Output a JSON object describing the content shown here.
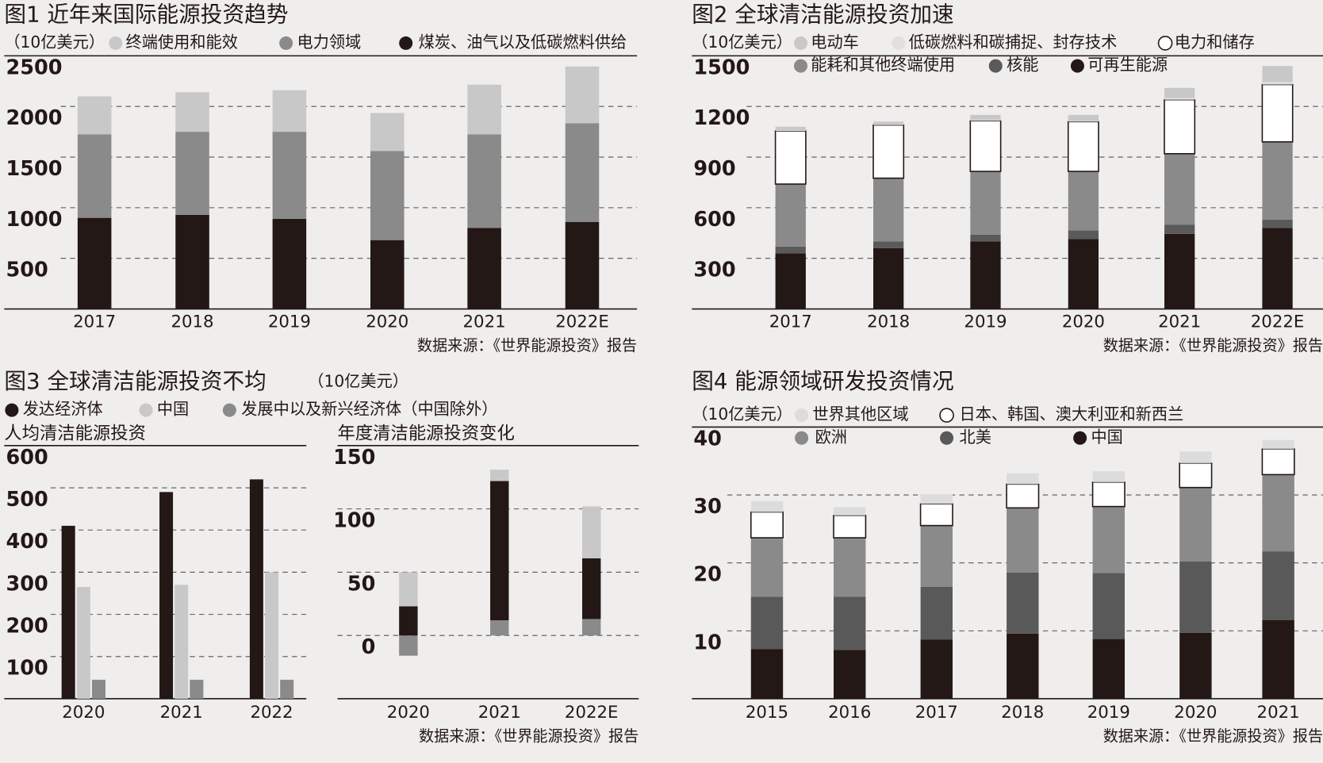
{
  "chart_data": [
    {
      "type": "bar",
      "stacked": true,
      "title": "图1  近年来国际能源投资趋势",
      "unit": "（10亿美元）",
      "categories": [
        "2017",
        "2018",
        "2019",
        "2020",
        "2021",
        "2022E"
      ],
      "series": [
        {
          "name": "终端使用和能效",
          "color": "#c8c8c8",
          "values": [
            375,
            390,
            410,
            375,
            490,
            560
          ]
        },
        {
          "name": "电力领域",
          "color": "#8a8a8a",
          "values": [
            825,
            820,
            860,
            880,
            925,
            975
          ]
        },
        {
          "name": "煤炭、油气以及低碳燃料供给",
          "color": "#231815",
          "values": [
            900,
            930,
            890,
            680,
            800,
            860
          ]
        }
      ],
      "ylim": [
        0,
        2500
      ],
      "yticks": [
        500,
        1000,
        1500,
        2000,
        2500
      ],
      "grid": true,
      "source": "数据来源：《世界能源投资》报告"
    },
    {
      "type": "bar",
      "stacked": true,
      "title": "图2 全球清洁能源投资加速",
      "unit": "（10亿美元）",
      "categories": [
        "2017",
        "2018",
        "2019",
        "2020",
        "2021",
        "2022E"
      ],
      "series": [
        {
          "name": "电动车",
          "color": "#c8c8c8",
          "values": [
            20,
            15,
            30,
            35,
            60,
            95
          ]
        },
        {
          "name": "低碳燃料和碳捕捉、封存技术",
          "color": "#e0e0e0",
          "values": [
            5,
            5,
            5,
            5,
            10,
            15
          ]
        },
        {
          "name": "电力和储存",
          "color": "#ffffff",
          "values": [
            315,
            315,
            300,
            295,
            320,
            340
          ]
        },
        {
          "name": "能耗和其他终端使用",
          "color": "#8a8a8a",
          "values": [
            370,
            375,
            375,
            350,
            420,
            460
          ]
        },
        {
          "name": "核能",
          "color": "#5a5a5a",
          "values": [
            40,
            40,
            40,
            50,
            55,
            50
          ]
        },
        {
          "name": "可再生能源",
          "color": "#231815",
          "values": [
            330,
            360,
            400,
            415,
            445,
            480
          ]
        }
      ],
      "ylim": [
        0,
        1500
      ],
      "yticks": [
        300,
        600,
        900,
        1200,
        1500
      ],
      "grid": true,
      "source": "数据来源：《世界能源投资》报告"
    },
    {
      "type": "bar",
      "stacked": false,
      "title": "图3  全球清洁能源投资不均",
      "unit": "（10亿美元）",
      "subtitle": "人均清洁能源投资",
      "categories": [
        "2020",
        "2021",
        "2022"
      ],
      "series": [
        {
          "name": "发达经济体",
          "color": "#231815",
          "values": [
            410,
            490,
            520
          ]
        },
        {
          "name": "中国",
          "color": "#c8c8c8",
          "values": [
            265,
            270,
            300
          ]
        },
        {
          "name": "发展中以及新兴经济体（中国除外）",
          "color": "#8a8a8a",
          "values": [
            45,
            45,
            45
          ]
        }
      ],
      "ylim": [
        0,
        600
      ],
      "yticks": [
        100,
        200,
        300,
        400,
        500,
        600
      ],
      "grid": true
    },
    {
      "type": "bar",
      "stacked": true,
      "subtitle": "年度清洁能源投资变化",
      "categories": [
        "2020",
        "2021",
        "2022E"
      ],
      "series": [
        {
          "color": "#c8c8c8",
          "values": [
            27,
            9,
            41
          ]
        },
        {
          "color": "#231815",
          "values": [
            23,
            110,
            48
          ]
        },
        {
          "color": "#8a8a8a",
          "values": [
            -16,
            12,
            13
          ]
        }
      ],
      "ylim": [
        -50,
        150
      ],
      "yticks": [
        0,
        50,
        100,
        150
      ],
      "grid": true,
      "source": "数据来源：《世界能源投资》报告"
    },
    {
      "type": "bar",
      "stacked": true,
      "title": "图4 能源领域研发投资情况",
      "unit": "（10亿美元）",
      "categories": [
        "2015",
        "2016",
        "2017",
        "2018",
        "2019",
        "2020",
        "2021"
      ],
      "series": [
        {
          "name": "世界其他区域",
          "color": "#dcdcdc",
          "values": [
            1.6,
            1.2,
            1.4,
            1.6,
            1.6,
            1.7,
            1.3
          ]
        },
        {
          "name": "日本、韩国、澳大利亚和新西兰",
          "color": "#ffffff",
          "values": [
            3.8,
            3.3,
            3.2,
            3.5,
            3.6,
            3.6,
            3.8
          ]
        },
        {
          "name": "欧洲",
          "color": "#8a8a8a",
          "values": [
            8.7,
            8.7,
            9.0,
            9.5,
            9.8,
            10.9,
            11.3
          ]
        },
        {
          "name": "北美",
          "color": "#595959",
          "values": [
            7.7,
            7.8,
            7.8,
            9.0,
            9.7,
            10.5,
            10.1
          ]
        },
        {
          "name": "中国",
          "color": "#231815",
          "values": [
            7.3,
            7.2,
            8.7,
            9.6,
            8.8,
            9.7,
            11.6
          ]
        }
      ],
      "ylim": [
        0,
        40
      ],
      "yticks": [
        10,
        20,
        30,
        40
      ],
      "grid": true,
      "source": "数据来源：《世界能源投资》报告"
    }
  ]
}
